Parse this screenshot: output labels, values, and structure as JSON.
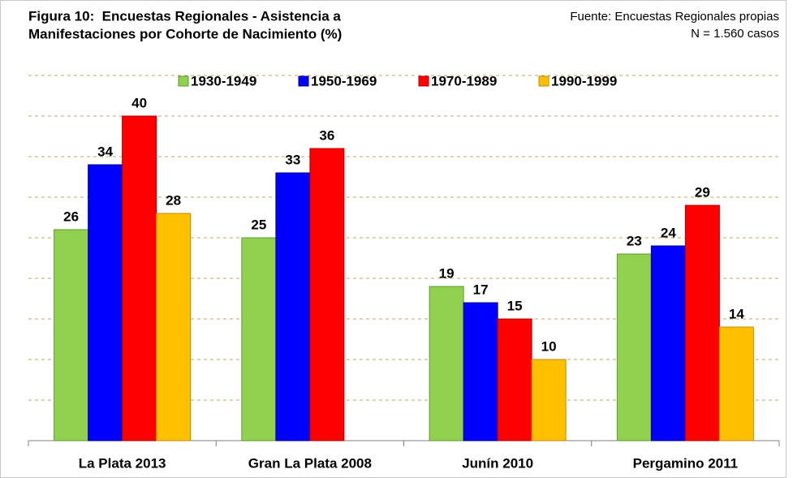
{
  "chart_data": {
    "type": "bar",
    "title": [
      "Figura 10:  Encuestas Regionales - Asistencia a",
      "Manifestaciones por Cohorte de Nacimiento (%)"
    ],
    "source": [
      "Fuente: Encuestas Regionales propias",
      "N = 1.560 casos"
    ],
    "categories": [
      "La Plata 2013",
      "Gran La Plata 2008",
      "Junín 2010",
      "Pergamino 2011"
    ],
    "series": [
      {
        "name": "1930-1949",
        "color": "#92d050",
        "values": [
          26,
          25,
          19,
          23
        ]
      },
      {
        "name": "1950-1969",
        "color": "#0000ff",
        "values": [
          34,
          33,
          17,
          24
        ]
      },
      {
        "name": "1970-1989",
        "color": "#ff0000",
        "values": [
          40,
          36,
          15,
          29
        ]
      },
      {
        "name": "1990-1999",
        "color": "#ffc000",
        "values": [
          28,
          null,
          10,
          14
        ]
      }
    ],
    "ylim": [
      0,
      45
    ],
    "yticks": [
      0,
      5,
      10,
      15,
      20,
      25,
      30,
      35,
      40,
      45
    ],
    "grid": true
  }
}
